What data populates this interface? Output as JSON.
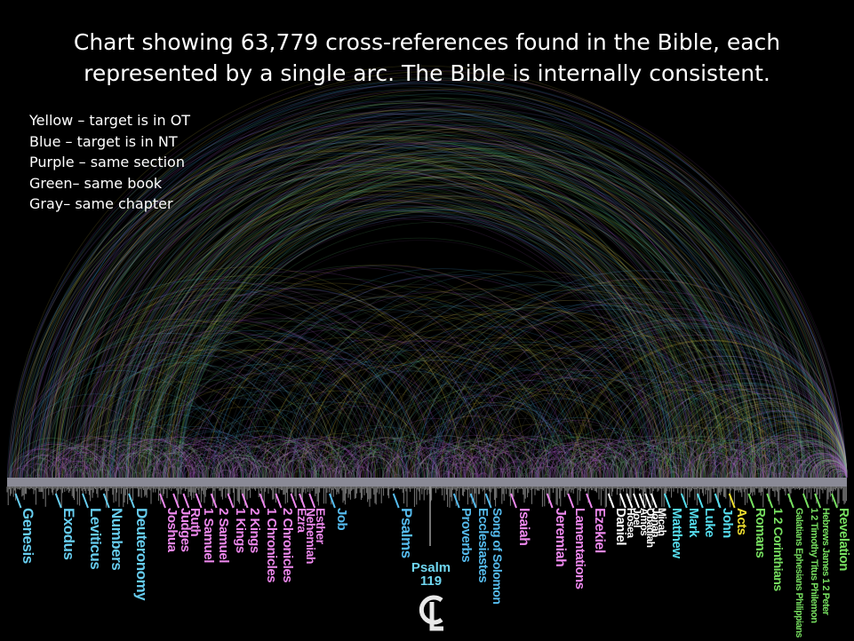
{
  "title": {
    "line1": "Chart showing 63,779 cross-references found in the Bible, each",
    "line2": "represented by a single arc.  The Bible is internally consistent."
  },
  "legend": [
    {
      "label": "Yellow – target is in OT",
      "color": "#e8d34a"
    },
    {
      "label": "Blue – target is in NT",
      "color": "#4aa8e8"
    },
    {
      "label": "Purple – same section",
      "color": "#b060d0"
    },
    {
      "label": "Green– same book",
      "color": "#5fc070"
    },
    {
      "label": "Gray– same chapter",
      "color": "#9a9a9a"
    }
  ],
  "colors": {
    "background": "#000000",
    "ot_label_law": "#66ccee",
    "ot_label_history": "#ee88ee",
    "ot_label_poetry": "#55bbee",
    "ot_label_prophets": "#ee88ee",
    "nt_label_gospels": "#55ddee",
    "nt_label_acts": "#f0e030",
    "nt_label_epistles": "#77e060",
    "white_label": "#ffffff"
  },
  "books": [
    {
      "name": "Genesis",
      "pos": 0.01,
      "color": "#66ccee",
      "size": 17
    },
    {
      "name": "Exodus",
      "pos": 0.058,
      "color": "#66ccee",
      "size": 17
    },
    {
      "name": "Leviticus",
      "pos": 0.09,
      "color": "#66ccee",
      "size": 17
    },
    {
      "name": "Numbers",
      "pos": 0.115,
      "color": "#66ccee",
      "size": 17
    },
    {
      "name": "Deuteronomy",
      "pos": 0.145,
      "color": "#66ccee",
      "size": 17
    },
    {
      "name": "Joshua",
      "pos": 0.182,
      "color": "#ee88ee",
      "size": 15
    },
    {
      "name": "Judges",
      "pos": 0.198,
      "color": "#ee88ee",
      "size": 15
    },
    {
      "name": "Ruth",
      "pos": 0.21,
      "color": "#ee88ee",
      "size": 15
    },
    {
      "name": "1 Samuel",
      "pos": 0.225,
      "color": "#ee88ee",
      "size": 15
    },
    {
      "name": "2 Samuel",
      "pos": 0.243,
      "color": "#ee88ee",
      "size": 15
    },
    {
      "name": "1 Kings",
      "pos": 0.263,
      "color": "#ee88ee",
      "size": 15
    },
    {
      "name": "2 Kings",
      "pos": 0.28,
      "color": "#ee88ee",
      "size": 15
    },
    {
      "name": "1 Chronicles",
      "pos": 0.301,
      "color": "#ee88ee",
      "size": 15
    },
    {
      "name": "2 Chronicles",
      "pos": 0.32,
      "color": "#ee88ee",
      "size": 15
    },
    {
      "name": "Ezra",
      "pos": 0.338,
      "color": "#ee88ee",
      "size": 14
    },
    {
      "name": "Nehemiah",
      "pos": 0.348,
      "color": "#ee88ee",
      "size": 14
    },
    {
      "name": "Esther",
      "pos": 0.36,
      "color": "#ee88ee",
      "size": 14
    },
    {
      "name": "Job",
      "pos": 0.384,
      "color": "#55bbee",
      "size": 15
    },
    {
      "name": "Psalms",
      "pos": 0.46,
      "color": "#55bbee",
      "size": 17
    },
    {
      "name": "Proverbs",
      "pos": 0.532,
      "color": "#55bbee",
      "size": 15
    },
    {
      "name": "Ecclesiastes",
      "pos": 0.552,
      "color": "#55bbee",
      "size": 15
    },
    {
      "name": "Song of Solomon",
      "pos": 0.57,
      "color": "#55bbee",
      "size": 14
    },
    {
      "name": "Isaiah",
      "pos": 0.6,
      "color": "#ee88ee",
      "size": 16
    },
    {
      "name": "Jeremiah",
      "pos": 0.643,
      "color": "#ee88ee",
      "size": 16
    },
    {
      "name": "Lamentations",
      "pos": 0.668,
      "color": "#ee88ee",
      "size": 15
    },
    {
      "name": "Ezekiel",
      "pos": 0.69,
      "color": "#ee88ee",
      "size": 16
    },
    {
      "name": "Daniel",
      "pos": 0.716,
      "color": "#ffffff",
      "size": 15
    },
    {
      "name": "Hosea",
      "pos": 0.73,
      "color": "#ffffff",
      "size": 12
    },
    {
      "name": "Joel",
      "pos": 0.738,
      "color": "#ffffff",
      "size": 12
    },
    {
      "name": "Amos",
      "pos": 0.746,
      "color": "#ffffff",
      "size": 12
    },
    {
      "name": "Obadiah",
      "pos": 0.753,
      "color": "#ffffff",
      "size": 12
    },
    {
      "name": "Jonah",
      "pos": 0.76,
      "color": "#ffffff",
      "size": 12
    },
    {
      "name": "Micah",
      "pos": 0.767,
      "color": "#ffffff",
      "size": 12
    },
    {
      "name": "Matthew",
      "pos": 0.783,
      "color": "#55ddee",
      "size": 15
    },
    {
      "name": "Mark",
      "pos": 0.803,
      "color": "#55ddee",
      "size": 15
    },
    {
      "name": "Luke",
      "pos": 0.822,
      "color": "#55ddee",
      "size": 15
    },
    {
      "name": "John",
      "pos": 0.843,
      "color": "#55ddee",
      "size": 15
    },
    {
      "name": "Acts",
      "pos": 0.86,
      "color": "#f0e030",
      "size": 15
    },
    {
      "name": "Romans",
      "pos": 0.883,
      "color": "#77e060",
      "size": 15
    },
    {
      "name": "1 2 Corinthians",
      "pos": 0.905,
      "color": "#77e060",
      "size": 14
    },
    {
      "name": "Galatians Ephesians Philippians",
      "pos": 0.93,
      "color": "#77e060",
      "size": 11
    },
    {
      "name": "1 2 Timothy Titus Philemon",
      "pos": 0.948,
      "color": "#77e060",
      "size": 11
    },
    {
      "name": "Hebrews James 1 2 Peter",
      "pos": 0.962,
      "color": "#77e060",
      "size": 11
    },
    {
      "name": "Revelation",
      "pos": 0.982,
      "color": "#77e060",
      "size": 15
    }
  ],
  "psalm_119": {
    "line1": "Psalm",
    "line2": "119"
  },
  "logo_text": "CL"
}
